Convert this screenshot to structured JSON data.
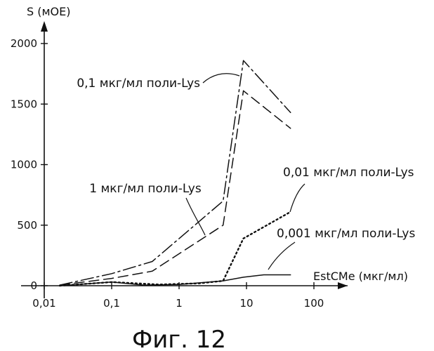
{
  "chart_data": {
    "type": "line",
    "caption": "Фиг. 12",
    "ylabel": "S (мОЕ)",
    "xlabel": "EstCMe (мкг/мл)",
    "x_scale": "log",
    "xlim": [
      0.01,
      100
    ],
    "ylim": [
      0,
      2000
    ],
    "x_ticks": [
      0.01,
      0.1,
      1,
      10,
      100
    ],
    "x_tick_labels": [
      "0,01",
      "0,1",
      "1",
      "10",
      "100"
    ],
    "y_ticks": [
      0,
      500,
      1000,
      1500,
      2000
    ],
    "y_tick_labels": [
      "0",
      "500",
      "1000",
      "1500",
      "2000"
    ],
    "grid": false,
    "series": [
      {
        "name": "0,1 мкг/мл поли-Lys",
        "style": "dash-dot",
        "x": [
          0.017,
          0.1,
          0.4,
          4.5,
          9,
          45
        ],
        "y": [
          5,
          100,
          200,
          700,
          1860,
          1430
        ]
      },
      {
        "name": "1 мкг/мл поли-Lys",
        "style": "dashed",
        "x": [
          0.017,
          0.1,
          0.4,
          4.5,
          9,
          45
        ],
        "y": [
          5,
          60,
          120,
          500,
          1610,
          1300
        ]
      },
      {
        "name": "0,01 мкг/мл поли-Lys",
        "style": "dotted",
        "x": [
          0.017,
          0.1,
          0.5,
          2,
          4.5,
          9,
          45
        ],
        "y": [
          0,
          30,
          10,
          20,
          40,
          390,
          610
        ]
      },
      {
        "name": "0,001 мкг/мл поли-Lys",
        "style": "solid",
        "x": [
          0.017,
          0.1,
          0.3,
          1,
          4.5,
          9,
          18,
          45
        ],
        "y": [
          0,
          30,
          5,
          10,
          40,
          70,
          90,
          90
        ]
      }
    ]
  }
}
